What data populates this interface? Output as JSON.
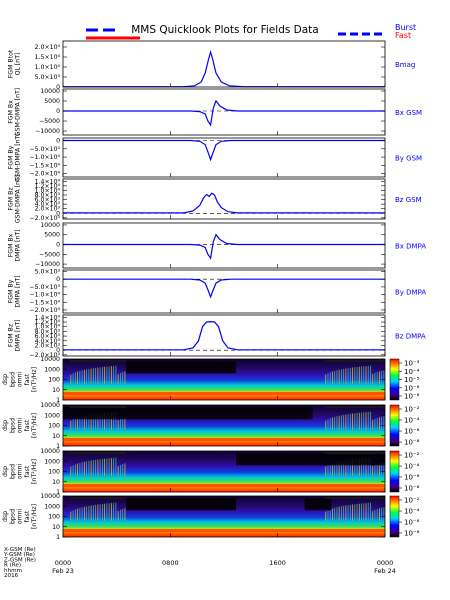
{
  "title": "MMS Quicklook Plots for Fields Data",
  "legend": {
    "burst": {
      "label": "Burst",
      "color": "#0000ff"
    },
    "fast": {
      "label": "Fast",
      "color": "#ff0000"
    }
  },
  "colors": {
    "trace": "#0000ff",
    "refline": "#000000"
  },
  "chart_data": [
    {
      "type": "line",
      "title": "Bmag",
      "ylabel": "FGM Btot\nQL [nT]",
      "ylim": [
        0,
        23000
      ],
      "yticks": [
        {
          "v": 0,
          "t": "0"
        },
        {
          "v": 5000,
          "t": "5.0×10³"
        },
        {
          "v": 10000,
          "t": "1.0×10⁴"
        },
        {
          "v": 15000,
          "t": "1.5×10⁴"
        },
        {
          "v": 20000,
          "t": "2.0×10⁴"
        }
      ],
      "series": [
        {
          "x": [
            0,
            9,
            9.8,
            10.3,
            10.6,
            10.85,
            11.0,
            11.15,
            11.4,
            11.8,
            12.4,
            13.5,
            24
          ],
          "y": [
            150,
            150,
            600,
            2500,
            7000,
            14000,
            17500,
            14000,
            7000,
            2500,
            600,
            150,
            150
          ]
        }
      ]
    },
    {
      "type": "line",
      "title": "Bx GSM",
      "ylabel": "FGM Bx\nGSM-DMPA [nT]",
      "ylim": [
        -12000,
        11000
      ],
      "yticks": [
        {
          "v": -10000,
          "t": "−10000"
        },
        {
          "v": -5000,
          "t": "−5000"
        },
        {
          "v": 0,
          "t": "0"
        },
        {
          "v": 5000,
          "t": "5000"
        },
        {
          "v": 10000,
          "t": "10000"
        }
      ],
      "refline": 0,
      "series": [
        {
          "x": [
            0,
            9.5,
            10.2,
            10.6,
            10.8,
            11.0,
            11.2,
            11.4,
            11.7,
            12.2,
            13.0,
            24
          ],
          "y": [
            0,
            0,
            -300,
            -1500,
            -5000,
            -7000,
            1500,
            5000,
            2500,
            500,
            0,
            0
          ]
        }
      ]
    },
    {
      "type": "line",
      "title": "By GSM",
      "ylabel": "FGM By\nGSM-DMPA [nT]",
      "ylim": [
        -22000,
        1500
      ],
      "yticks": [
        {
          "v": 0,
          "t": "0"
        },
        {
          "v": -5000,
          "t": "−5.0×10³"
        },
        {
          "v": -10000,
          "t": "−1.0×10⁴"
        },
        {
          "v": -15000,
          "t": "−1.5×10⁴"
        },
        {
          "v": -20000,
          "t": "−2.0×10⁴"
        }
      ],
      "refline": 0,
      "series": [
        {
          "x": [
            0,
            9.5,
            10.2,
            10.6,
            10.85,
            11.0,
            11.15,
            11.4,
            11.8,
            12.5,
            24
          ],
          "y": [
            0,
            0,
            -500,
            -2500,
            -8000,
            -11500,
            -8000,
            -2500,
            -500,
            0,
            0
          ]
        }
      ]
    },
    {
      "type": "line",
      "title": "Bz GSM",
      "ylabel": "FGM Bz\nGSM-DMPA [nT]",
      "ylim": [
        -2500,
        15000
      ],
      "yticks": [
        {
          "v": -2000,
          "t": "−2.0×10³"
        },
        {
          "v": 0,
          "t": "0"
        },
        {
          "v": 2000,
          "t": "2.0×10³"
        },
        {
          "v": 4000,
          "t": "4.0×10³"
        },
        {
          "v": 6000,
          "t": "6.0×10³"
        },
        {
          "v": 8000,
          "t": "8.0×10³"
        },
        {
          "v": 10000,
          "t": "1.0×10⁴"
        },
        {
          "v": 12000,
          "t": "1.2×10⁴"
        },
        {
          "v": 14000,
          "t": "1.4×10⁴"
        }
      ],
      "refline": 0,
      "series": [
        {
          "x": [
            0,
            9.0,
            9.7,
            10.2,
            10.5,
            10.7,
            10.9,
            11.1,
            11.3,
            11.5,
            11.8,
            12.3,
            13.0,
            24
          ],
          "y": [
            150,
            150,
            1000,
            3500,
            7000,
            8200,
            7400,
            8800,
            8000,
            5000,
            2500,
            700,
            150,
            150
          ]
        }
      ]
    },
    {
      "type": "line",
      "title": "Bx DMPA",
      "ylabel": "FGM Bx\nDMPA [nT]",
      "ylim": [
        -12000,
        11000
      ],
      "yticks": [
        {
          "v": -10000,
          "t": "−10000"
        },
        {
          "v": -5000,
          "t": "−5000"
        },
        {
          "v": 0,
          "t": "0"
        },
        {
          "v": 5000,
          "t": "5000"
        },
        {
          "v": 10000,
          "t": "10000"
        }
      ],
      "refline": 0,
      "series": [
        {
          "x": [
            0,
            9.5,
            10.2,
            10.6,
            10.8,
            11.0,
            11.2,
            11.4,
            11.7,
            12.2,
            13.0,
            24
          ],
          "y": [
            0,
            0,
            -300,
            -1500,
            -5000,
            -7000,
            1500,
            5000,
            2500,
            500,
            0,
            0
          ]
        }
      ]
    },
    {
      "type": "line",
      "title": "By DMPA",
      "ylabel": "FGM By\nDMPA [nT]",
      "ylim": [
        -22000,
        6000
      ],
      "yticks": [
        {
          "v": 5000,
          "t": "5.0×10³"
        },
        {
          "v": 0,
          "t": "0"
        },
        {
          "v": -5000,
          "t": "−5.0×10³"
        },
        {
          "v": -10000,
          "t": "−1.0×10⁴"
        },
        {
          "v": -15000,
          "t": "−1.5×10⁴"
        },
        {
          "v": -20000,
          "t": "−2.0×10⁴"
        }
      ],
      "refline": 0,
      "series": [
        {
          "x": [
            0,
            9.5,
            10.2,
            10.6,
            10.85,
            11.0,
            11.15,
            11.4,
            11.8,
            12.5,
            24
          ],
          "y": [
            0,
            0,
            -500,
            -2500,
            -8000,
            -11500,
            -8000,
            -2500,
            -500,
            0,
            0
          ]
        }
      ]
    },
    {
      "type": "line",
      "title": "Bz DMPA",
      "ylabel": "FGM Bz\nDMPA [nT]",
      "ylim": [
        -2500,
        15000
      ],
      "yticks": [
        {
          "v": -2000,
          "t": "−2.0×10³"
        },
        {
          "v": 0,
          "t": "0"
        },
        {
          "v": 2000,
          "t": "2.0×10³"
        },
        {
          "v": 4000,
          "t": "4.0×10³"
        },
        {
          "v": 6000,
          "t": "6.0×10³"
        },
        {
          "v": 8000,
          "t": "8.0×10³"
        },
        {
          "v": 10000,
          "t": "1.0×10⁴"
        },
        {
          "v": 12000,
          "t": "1.2×10⁴"
        },
        {
          "v": 14000,
          "t": "1.4×10⁴"
        }
      ],
      "refline": 0,
      "series": [
        {
          "x": [
            0,
            9.0,
            9.7,
            10.1,
            10.4,
            10.7,
            11.0,
            11.3,
            11.6,
            11.9,
            12.3,
            13.0,
            24
          ],
          "y": [
            150,
            150,
            1000,
            4000,
            10000,
            12000,
            12200,
            12000,
            10000,
            4000,
            1000,
            150,
            150
          ]
        }
      ]
    },
    {
      "type": "heatmap",
      "spacecraft": "mms1",
      "ylabel": "mms1\ndsp\nbpsd\nomni\nfast\n[nT²/Hz]",
      "yscale": "log",
      "ylim": [
        1,
        10000
      ],
      "yticks": [
        {
          "v": 1,
          "t": "1"
        },
        {
          "v": 10,
          "t": "10"
        },
        {
          "v": 100,
          "t": "100"
        },
        {
          "v": 1000,
          "t": "1000"
        },
        {
          "v": 10000,
          "t": "10000"
        }
      ],
      "data_gaps": [
        [
          4.7,
          12.9
        ]
      ],
      "active_intervals": [
        [
          0.5,
          4.7
        ],
        [
          19.5,
          24
        ]
      ]
    },
    {
      "type": "heatmap",
      "spacecraft": "mms2",
      "ylabel": "mms2\ndsp\nbpsd\nomni\nfast\n[nT²/Hz]",
      "yscale": "log",
      "ylim": [
        1,
        10000
      ],
      "yticks": [
        {
          "v": 1,
          "t": "1"
        },
        {
          "v": 10,
          "t": "10"
        },
        {
          "v": 100,
          "t": "100"
        },
        {
          "v": 1000,
          "t": "1000"
        },
        {
          "v": 10000,
          "t": "10000"
        }
      ],
      "data_gaps": [
        [
          0,
          18.6
        ]
      ],
      "active_intervals": [
        [
          0.5,
          4.7
        ],
        [
          19.5,
          24
        ]
      ]
    },
    {
      "type": "heatmap",
      "spacecraft": "mms3",
      "ylabel": "mms3\ndsp\nbpsd\nomni\nfast\n[nT²/Hz]",
      "yscale": "log",
      "ylim": [
        1,
        10000
      ],
      "yticks": [
        {
          "v": 1,
          "t": "1"
        },
        {
          "v": 10,
          "t": "10"
        },
        {
          "v": 100,
          "t": "100"
        },
        {
          "v": 1000,
          "t": "1000"
        },
        {
          "v": 10000,
          "t": "10000"
        }
      ],
      "data_gaps": [
        [
          12.9,
          24
        ]
      ],
      "active_intervals": [
        [
          0.5,
          4.7
        ],
        [
          19.5,
          24
        ]
      ]
    },
    {
      "type": "heatmap",
      "spacecraft": "mms4",
      "ylabel": "mms4\ndsp\nbpsd\nomni\nfast\n[nT²/Hz]",
      "yscale": "log",
      "ylim": [
        1,
        10000
      ],
      "yticks": [
        {
          "v": 1,
          "t": "1"
        },
        {
          "v": 10,
          "t": "10"
        },
        {
          "v": 100,
          "t": "100"
        },
        {
          "v": 1000,
          "t": "1000"
        },
        {
          "v": 10000,
          "t": "10000"
        }
      ],
      "data_gaps": [
        [
          4.7,
          12.9
        ],
        [
          18.0,
          20.0
        ]
      ],
      "active_intervals": [
        [
          0.5,
          4.7
        ],
        [
          19.5,
          24
        ]
      ]
    }
  ],
  "colorbars": [
    {
      "ticks": [
        "10⁻³",
        "10⁻⁴",
        "10⁻⁵",
        "10⁻⁶",
        "10⁻⁸"
      ]
    },
    {
      "ticks": [
        "10⁻²",
        "10⁻⁴",
        "10⁻⁶",
        "10⁻⁸"
      ]
    },
    {
      "ticks": [
        "10⁻²",
        "10⁻⁴",
        "10⁻⁶",
        "10⁻⁸"
      ]
    },
    {
      "ticks": [
        "10⁻²",
        "10⁻⁴",
        "10⁻⁶",
        "10⁻⁸"
      ]
    }
  ],
  "xaxis": {
    "range": [
      0,
      24
    ],
    "ticks": [
      {
        "v": 0,
        "t": "0000",
        "sub": "Feb 23"
      },
      {
        "v": 8,
        "t": "0800",
        "sub": ""
      },
      {
        "v": 16,
        "t": "1600",
        "sub": ""
      },
      {
        "v": 24,
        "t": "0000",
        "sub": "Feb 24"
      }
    ],
    "row_labels": [
      "X-GSM (Re)",
      "Y-GSM (Re)",
      "Z-GSM (Re)",
      "R (Re)",
      "hhmm",
      "2016"
    ]
  }
}
